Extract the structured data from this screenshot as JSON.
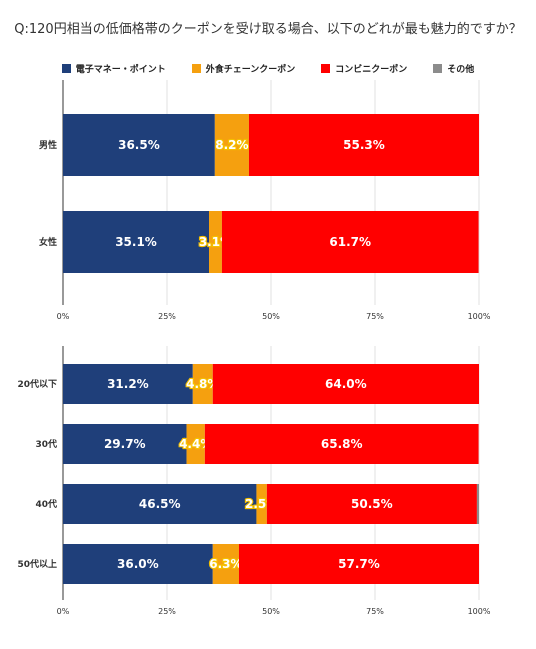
{
  "title": "Q:120円相当の低価格帯のクーポンを受け取る場合、以下のどれが最も魅力的ですか？",
  "colors": {
    "electronic": "#1f3f7a",
    "restaurant": "#f5a00f",
    "convenience": "#ff0000",
    "other": "#8c8c8c"
  },
  "legend": [
    {
      "key": "electronic",
      "label": "電子マネー・ポイント"
    },
    {
      "key": "restaurant",
      "label": "外食チェーンクーポン"
    },
    {
      "key": "convenience",
      "label": "コンビニクーポン"
    },
    {
      "key": "other",
      "label": "その他"
    }
  ],
  "chart_data": [
    {
      "type": "bar",
      "orientation": "horizontal",
      "stacked": true,
      "categories": [
        "男性",
        "女性"
      ],
      "series": [
        {
          "name": "電子マネー・ポイント",
          "values": [
            36.5,
            35.1
          ]
        },
        {
          "name": "外食チェーンクーポン",
          "values": [
            8.2,
            3.1
          ]
        },
        {
          "name": "コンビニクーポン",
          "values": [
            55.3,
            61.7
          ]
        },
        {
          "name": "その他",
          "values": [
            0,
            0
          ]
        }
      ],
      "xlim": [
        0,
        100
      ],
      "ticks": [
        "0%",
        "25%",
        "50%",
        "75%",
        "100%"
      ]
    },
    {
      "type": "bar",
      "orientation": "horizontal",
      "stacked": true,
      "categories": [
        "20代以下",
        "30代",
        "40代",
        "50代以上"
      ],
      "series": [
        {
          "name": "電子マネー・ポイント",
          "values": [
            31.2,
            29.7,
            46.5,
            36.0
          ]
        },
        {
          "name": "外食チェーンクーポン",
          "values": [
            4.8,
            4.4,
            2.5,
            6.3
          ]
        },
        {
          "name": "コンビニクーポン",
          "values": [
            64.0,
            65.8,
            50.5,
            57.7
          ]
        },
        {
          "name": "その他",
          "values": [
            0,
            0,
            0.5,
            0
          ]
        }
      ],
      "xlim": [
        0,
        100
      ],
      "ticks": [
        "0%",
        "25%",
        "50%",
        "75%",
        "100%"
      ]
    }
  ]
}
